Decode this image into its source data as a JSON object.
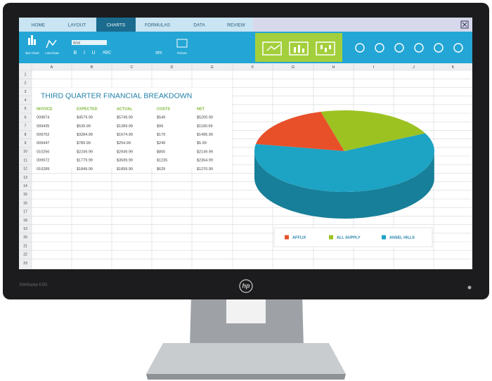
{
  "tabs": [
    "HOME",
    "LAYOUT",
    "CHARTS",
    "FORMULAS",
    "DATA",
    "REVIEW"
  ],
  "toolbar": {
    "bar_chart": "Bar Chart",
    "line_chart": "LineChart",
    "font": "Arial",
    "bold": "B",
    "italic": "I",
    "underline": "U",
    "caps": "ABC",
    "lower": "abc",
    "picture": "Picture"
  },
  "columns": [
    "A",
    "B",
    "C",
    "D",
    "E",
    "F",
    "G",
    "H",
    "I",
    "J",
    "K"
  ],
  "rows": [
    "1",
    "2",
    "3",
    "4",
    "5",
    "6",
    "7",
    "8",
    "9",
    "10",
    "11",
    "12",
    "13",
    "14",
    "15",
    "16",
    "17",
    "18",
    "19",
    "20",
    "21",
    "22",
    "23"
  ],
  "sheet": {
    "title": "THIRD QUARTER FINANCIAL BREAKDOWN",
    "header": [
      "INVOICE",
      "EXPECTED",
      "ACTUAL",
      "COSTS",
      "NET"
    ],
    "rows": [
      [
        "009874",
        "$4579.99",
        "$5749.99",
        "$549",
        "$5200.99"
      ],
      [
        "009435",
        "$539.99",
        "$1289.99",
        "$99",
        "$1190.99"
      ],
      [
        "009752",
        "$3284.99",
        "$1674.99",
        "$179",
        "$1495.99"
      ],
      [
        "009447",
        "$789.99",
        "$254.99",
        "$249",
        "$5.99"
      ],
      [
        "010256",
        "$2249.99",
        "$2949.99",
        "$800",
        "$2149.99"
      ],
      [
        "009972",
        "$1779.99",
        "$3599.99",
        "$1235",
        "$2364.99"
      ],
      [
        "010289",
        "$1849.99",
        "$1899.99",
        "$629",
        "$1270.99"
      ]
    ]
  },
  "chart_data": {
    "type": "pie",
    "categories": [
      "AFFLIX",
      "ALL SUPPLY",
      "ANSEL HILLS"
    ],
    "values": [
      18,
      22,
      60
    ],
    "colors": [
      "#e8502a",
      "#9cc222",
      "#1da3c4"
    ]
  },
  "monitor": {
    "model": "EliteDisplay E202",
    "brand": "hp"
  }
}
